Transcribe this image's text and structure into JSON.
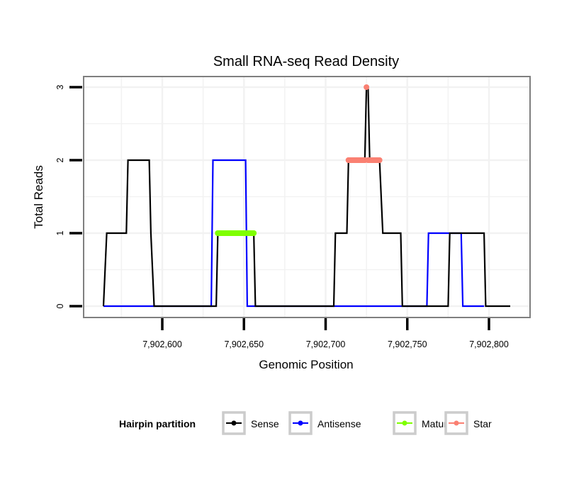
{
  "chart_data": {
    "type": "line",
    "title": "Small RNA-seq Read Density",
    "xlabel": "Genomic Position",
    "ylabel": "Total Reads",
    "xlim": [
      7902556,
      7902826
    ],
    "ylim": [
      -0.15,
      3.15
    ],
    "xticks": [
      7902600,
      7902650,
      7902700,
      7902750,
      7902800
    ],
    "xtick_labels": [
      "7,902,600",
      "7,902,650",
      "7,902,700",
      "7,902,750",
      "7,902,800"
    ],
    "yticks": [
      0,
      1,
      2,
      3
    ],
    "ytick_labels": [
      "0",
      "1",
      "2",
      "3"
    ],
    "grid": true,
    "legend": {
      "title": "Hairpin partition",
      "placement": "bottom",
      "entries": [
        {
          "label": "Sense",
          "color": "#000000"
        },
        {
          "label": "Antisense",
          "color": "#0000ff"
        },
        {
          "label": "Mature",
          "color": "#7fff00"
        },
        {
          "label": "Star",
          "color": "#fa8072"
        }
      ]
    },
    "series": [
      {
        "name": "Sense",
        "color": "#000000",
        "x": [
          7902564,
          7902566,
          7902578,
          7902579,
          7902592,
          7902593,
          7902595,
          7902633,
          7902634,
          7902656,
          7902657,
          7902705,
          7902706,
          7902713,
          7902714,
          7902724,
          7902725,
          7902726,
          7902727,
          7902733,
          7902735,
          7902746,
          7902747,
          7902775,
          7902776,
          7902797,
          7902798,
          7902813
        ],
        "y": [
          0,
          1,
          1,
          2,
          2,
          1,
          0,
          0,
          1,
          1,
          0,
          0,
          1,
          1,
          2,
          2,
          3,
          3,
          2,
          2,
          1,
          1,
          0,
          0,
          1,
          1,
          0,
          0
        ]
      },
      {
        "name": "Antisense",
        "color": "#0000ff",
        "x": [
          7902564,
          7902630,
          7902631,
          7902651,
          7902652,
          7902762,
          7902763,
          7902783,
          7902784,
          7902797
        ],
        "y": [
          0,
          0,
          2,
          2,
          0,
          0,
          1,
          1,
          0,
          0
        ]
      },
      {
        "name": "Mature",
        "color": "#7fff00",
        "type": "points",
        "x": [
          7902634,
          7902636,
          7902638,
          7902640,
          7902642,
          7902644,
          7902646,
          7902648,
          7902650,
          7902652,
          7902654,
          7902656
        ],
        "y": [
          1,
          1,
          1,
          1,
          1,
          1,
          1,
          1,
          1,
          1,
          1,
          1
        ]
      },
      {
        "name": "Star",
        "color": "#fa8072",
        "type": "points",
        "x": [
          7902714,
          7902716,
          7902718,
          7902720,
          7902722,
          7902724,
          7902725,
          7902726,
          7902728,
          7902730,
          7902732,
          7902733
        ],
        "y": [
          2,
          2,
          2,
          2,
          2,
          2,
          3,
          2,
          2,
          2,
          2,
          2
        ]
      }
    ]
  }
}
